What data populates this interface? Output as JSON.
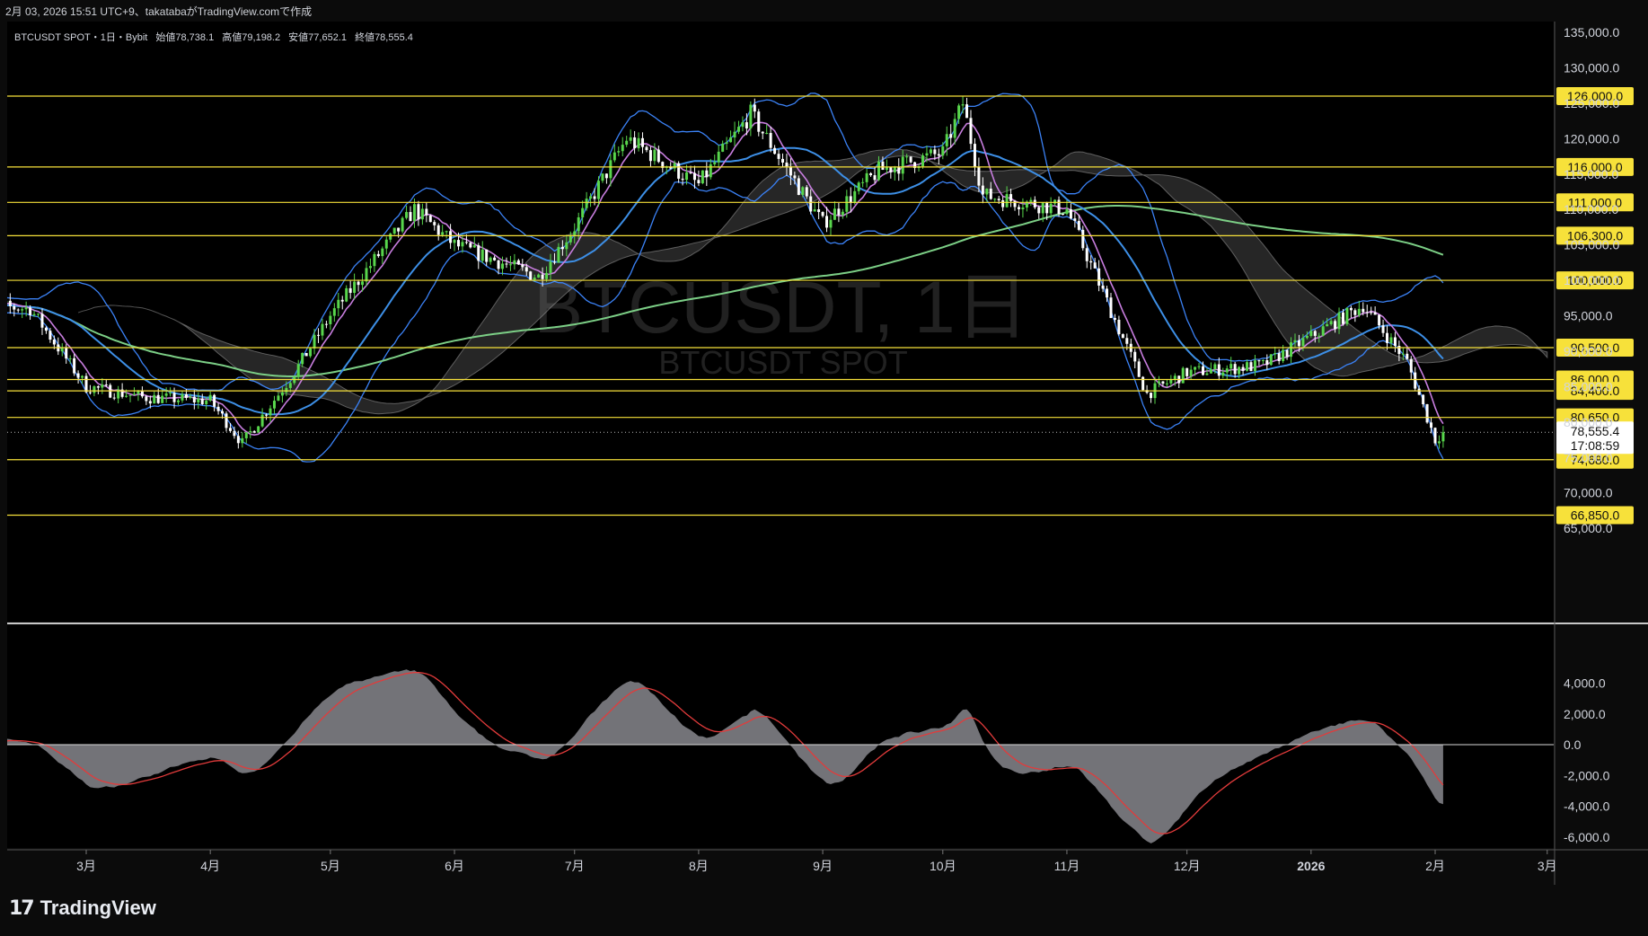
{
  "header": {
    "text": "2月 03, 2026 15:51 UTC+9、takatabaがTradingView.comで作成"
  },
  "legend": {
    "symbol": "BTCUSDT SPOT・1日・Bybit",
    "open_label": "始値",
    "open": "78,738.1",
    "high_label": "高値",
    "high": "79,198.2",
    "low_label": "安値",
    "low": "77,652.1",
    "close_label": "終値",
    "close": "78,555.4"
  },
  "watermark": {
    "main": "BTCUSDT, 1日",
    "sub": "BTCUSDT SPOT"
  },
  "price_axis": {
    "ticks": [
      "135,000.0",
      "130,000.0",
      "125,000.0",
      "120,000.0",
      "115,000.0",
      "110,000.0",
      "105,000.0",
      "100,000.0",
      "95,000.0",
      "90,000.0",
      "85,000.0",
      "80,000.0",
      "75,000.0",
      "70,000.0",
      "65,000.0"
    ],
    "last_price": "78,555.4",
    "countdown": "17:08:59"
  },
  "levels": [
    {
      "label": "126,000.0",
      "value": 126000
    },
    {
      "label": "116,000.0",
      "value": 116000
    },
    {
      "label": "111,000.0",
      "value": 111000
    },
    {
      "label": "106,300.0",
      "value": 106300
    },
    {
      "label": "100,000.0",
      "value": 100000
    },
    {
      "label": "90,500.0",
      "value": 90500
    },
    {
      "label": "86,000.0",
      "value": 86000
    },
    {
      "label": "84,400.0",
      "value": 84400
    },
    {
      "label": "80,650.0",
      "value": 80650
    },
    {
      "label": "74,680.0",
      "value": 74680
    },
    {
      "label": "66,850.0",
      "value": 66850
    }
  ],
  "osc_axis": {
    "ticks": [
      "4,000.0",
      "2,000.0",
      "0.0",
      "-2,000.0",
      "-4,000.0",
      "-6,000.0"
    ]
  },
  "time_axis": {
    "labels": [
      "3月",
      "4月",
      "5月",
      "6月",
      "7月",
      "8月",
      "9月",
      "10月",
      "11月",
      "12月",
      "2026",
      "2月",
      "3月"
    ]
  },
  "footer": {
    "brand": "TradingView"
  },
  "colors": {
    "background": "#0b0b0b",
    "level_line": "#f7e13a",
    "candle_up": "#58d64c",
    "candle_down": "#ffffff",
    "bb_band": "#3b82f6",
    "ma_short": "#c77dde",
    "ma_mid": "#3d8fe6",
    "ma_long": "#7ccf86",
    "cloud": "#8a8a8a",
    "macd_area": "#9a9aa0",
    "signal": "#e23b3b"
  },
  "chart_data": {
    "type": "candlestick",
    "title": "BTCUSDT, 1日",
    "y_range": [
      62000,
      136000
    ],
    "series": [
      {
        "name": "BTCUSDT",
        "approx_close_path": [
          {
            "x": "2025-02-01",
            "y": 96500
          },
          {
            "x": "2025-02-15",
            "y": 96000
          },
          {
            "x": "2025-03-01",
            "y": 85000
          },
          {
            "x": "2025-03-15",
            "y": 83500
          },
          {
            "x": "2025-04-01",
            "y": 83000
          },
          {
            "x": "2025-04-09",
            "y": 77000
          },
          {
            "x": "2025-04-22",
            "y": 87000
          },
          {
            "x": "2025-05-01",
            "y": 95000
          },
          {
            "x": "2025-05-22",
            "y": 110000
          },
          {
            "x": "2025-06-01",
            "y": 105000
          },
          {
            "x": "2025-06-22",
            "y": 100500
          },
          {
            "x": "2025-07-01",
            "y": 107500
          },
          {
            "x": "2025-07-14",
            "y": 120000
          },
          {
            "x": "2025-08-01",
            "y": 113500
          },
          {
            "x": "2025-08-14",
            "y": 123500
          },
          {
            "x": "2025-09-01",
            "y": 108000
          },
          {
            "x": "2025-09-15",
            "y": 115500
          },
          {
            "x": "2025-10-01",
            "y": 118000
          },
          {
            "x": "2025-10-06",
            "y": 125000
          },
          {
            "x": "2025-10-11",
            "y": 112000
          },
          {
            "x": "2025-11-01",
            "y": 110000
          },
          {
            "x": "2025-11-21",
            "y": 84000
          },
          {
            "x": "2025-12-01",
            "y": 87000
          },
          {
            "x": "2025-12-20",
            "y": 88000
          },
          {
            "x": "2026-01-14",
            "y": 96500
          },
          {
            "x": "2026-01-25",
            "y": 88500
          },
          {
            "x": "2026-02-01",
            "y": 77500
          },
          {
            "x": "2026-02-03",
            "y": 78555.4
          }
        ]
      }
    ]
  }
}
